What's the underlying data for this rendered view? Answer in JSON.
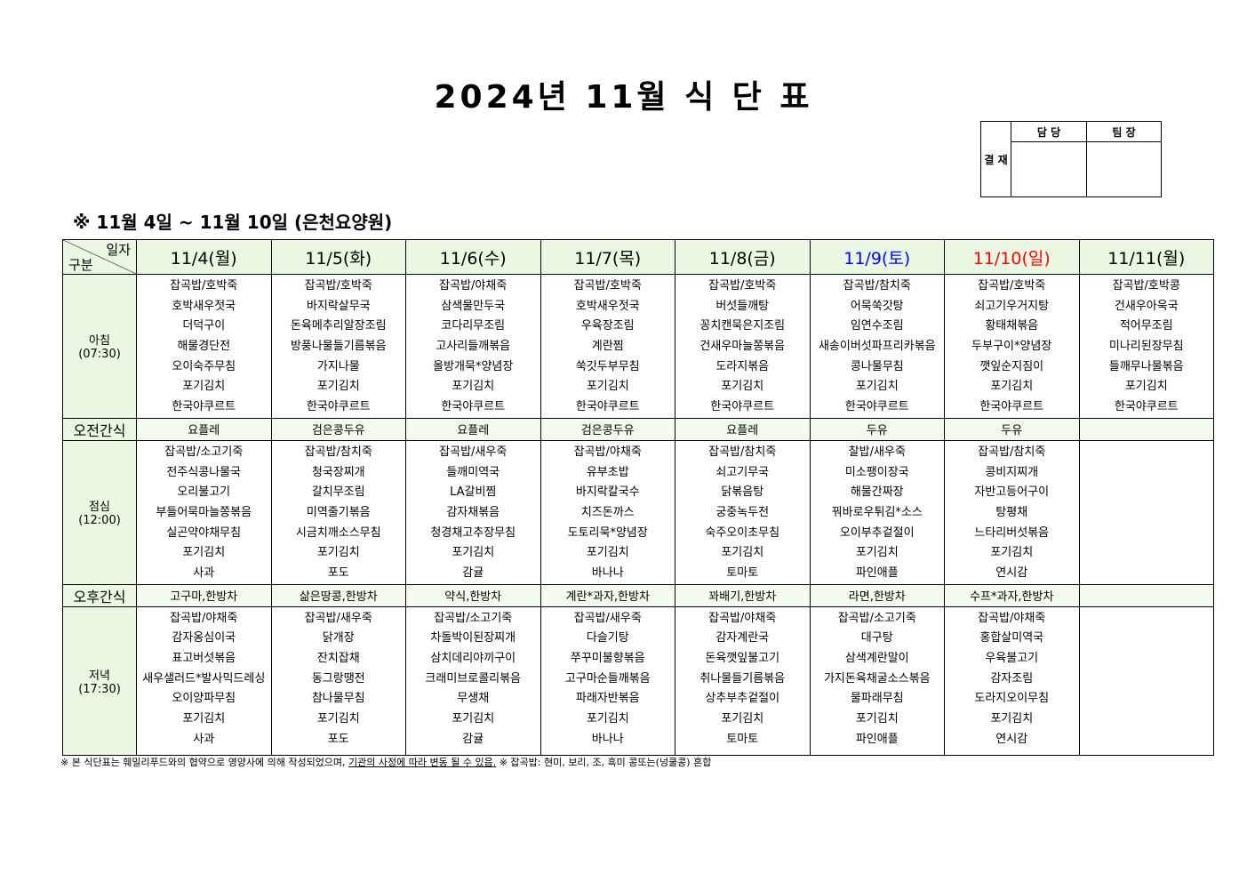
{
  "title": "2024년 11월 식 단 표",
  "approval": {
    "label": "결 재",
    "columns": [
      "담 당",
      "팀 장"
    ]
  },
  "subtitle": "※ 11월 4일 ~ 11월 10일 (은천요양원)",
  "corner": {
    "top": "일자",
    "bottom": "구분"
  },
  "colors": {
    "header_bg": "#eaf8e3",
    "saturday": "#0000ff",
    "sunday": "#ff0000"
  },
  "days": [
    {
      "label": "11/4(월)",
      "color": "#000000"
    },
    {
      "label": "11/5(화)",
      "color": "#000000"
    },
    {
      "label": "11/6(수)",
      "color": "#000000"
    },
    {
      "label": "11/7(목)",
      "color": "#000000"
    },
    {
      "label": "11/8(금)",
      "color": "#000000"
    },
    {
      "label": "11/9(토)",
      "color": "#0000ff"
    },
    {
      "label": "11/10(일)",
      "color": "#ff0000"
    },
    {
      "label": "11/11(월)",
      "color": "#000000"
    }
  ],
  "rows": [
    {
      "type": "meal",
      "name": "아침",
      "time": "(07:30)",
      "cells": [
        [
          "잡곡밥/호박죽",
          "호박새우젓국",
          "더덕구이",
          "해물경단전",
          "오이숙주무침",
          "포기김치",
          "한국야쿠르트"
        ],
        [
          "잡곡밥/호박죽",
          "바지락살무국",
          "돈육메추리알장조림",
          "방풍나물들기름볶음",
          "가지나물",
          "포기김치",
          "한국야쿠르트"
        ],
        [
          "잡곡밥/야채죽",
          "삼색물만두국",
          "코다리무조림",
          "고사리들깨볶음",
          "올방개묵*양념장",
          "포기김치",
          "한국야쿠르트"
        ],
        [
          "잡곡밥/호박죽",
          "호박새우젓국",
          "우육장조림",
          "계란찜",
          "쑥갓두부무침",
          "포기김치",
          "한국야쿠르트"
        ],
        [
          "잡곡밥/호박죽",
          "버섯들깨탕",
          "꽁치캔묵은지조림",
          "건새우마늘쫑볶음",
          "도라지볶음",
          "포기김치",
          "한국야쿠르트"
        ],
        [
          "잡곡밥/참치죽",
          "어묵쑥갓탕",
          "임연수조림",
          "새송이버섯파프리카볶음",
          "콩나물무침",
          "포기김치",
          "한국야쿠르트"
        ],
        [
          "잡곡밥/호박죽",
          "쇠고기우거지탕",
          "황태채볶음",
          "두부구이*양념장",
          "깻잎순지짐이",
          "포기김치",
          "한국야쿠르트"
        ],
        [
          "잡곡밥/호박콩",
          "건새우아욱국",
          "적어무조림",
          "미나리된장무침",
          "들깨무나물볶음",
          "포기김치",
          "한국야쿠르트"
        ]
      ]
    },
    {
      "type": "snack",
      "name": "오전간식",
      "cells": [
        "요플레",
        "검은콩두유",
        "요플레",
        "검은콩두유",
        "요플레",
        "두유",
        "두유",
        ""
      ]
    },
    {
      "type": "meal",
      "name": "점심",
      "time": "(12:00)",
      "cells": [
        [
          "잡곡밥/소고기죽",
          "전주식콩나물국",
          "오리불고기",
          "부들어묵마늘쫑볶음",
          "실곤약야채무침",
          "포기김치",
          "사과"
        ],
        [
          "잡곡밥/참치죽",
          "청국장찌개",
          "갈치무조림",
          "미역줄기볶음",
          "시금치깨소스무침",
          "포기김치",
          "포도"
        ],
        [
          "잡곡밥/새우죽",
          "들깨미역국",
          "LA갈비찜",
          "감자채볶음",
          "청경채고추장무침",
          "포기김치",
          "감귤"
        ],
        [
          "잡곡밥/야채죽",
          "유부초밥",
          "바지락칼국수",
          "치즈돈까스",
          "도토리묵*양념장",
          "포기김치",
          "바나나"
        ],
        [
          "잡곡밥/참치죽",
          "쇠고기무국",
          "닭볶음탕",
          "궁중녹두전",
          "숙주오이초무침",
          "포기김치",
          "토마토"
        ],
        [
          "찰밥/새우죽",
          "미소팽이장국",
          "해물간짜장",
          "꿔바로우튀김*소스",
          "오이부추겉절이",
          "포기김치",
          "파인애플"
        ],
        [
          "잡곡밥/참치죽",
          "콩비지찌개",
          "자반고등어구이",
          "탕평채",
          "느타리버섯볶음",
          "포기김치",
          "연시감"
        ],
        []
      ]
    },
    {
      "type": "snack",
      "name": "오후간식",
      "cells": [
        "고구마,한방차",
        "삶은땅콩,한방차",
        "약식,한방차",
        "계란*과자,한방차",
        "꽈배기,한방차",
        "라면,한방차",
        "수프*과자,한방차",
        ""
      ]
    },
    {
      "type": "meal",
      "name": "저녁",
      "time": "(17:30)",
      "cells": [
        [
          "잡곡밥/야채죽",
          "감자옹심이국",
          "표고버섯볶음",
          "새우샐러드*발사믹드레싱",
          "오이양파무침",
          "포기김치",
          "사과"
        ],
        [
          "잡곡밥/새우죽",
          "닭개장",
          "잔치잡채",
          "동그랑땡전",
          "참나물무침",
          "포기김치",
          "포도"
        ],
        [
          "잡곡밥/소고기죽",
          "차돌박이된장찌개",
          "삼치데리야끼구이",
          "크래미브로콜리볶음",
          "무생채",
          "포기김치",
          "감귤"
        ],
        [
          "잡곡밥/새우죽",
          "다슬기탕",
          "쭈꾸미불향볶음",
          "고구마순들깨볶음",
          "파래자반볶음",
          "포기김치",
          "바나나"
        ],
        [
          "잡곡밥/야채죽",
          "감자계란국",
          "돈육깻잎불고기",
          "취나물들기름볶음",
          "상추부추겉절이",
          "포기김치",
          "토마토"
        ],
        [
          "잡곡밥/소고기죽",
          "대구탕",
          "삼색계란말이",
          "가지돈육채굴소스볶음",
          "물파래무침",
          "포기김치",
          "파인애플"
        ],
        [
          "잡곡밥/야채죽",
          "홍합살미역국",
          "우육불고기",
          "감자조림",
          "도라지오이무침",
          "포기김치",
          "연시감"
        ],
        []
      ]
    }
  ],
  "footnote": {
    "part1": "※ 본 식단표는 훼밀리푸드와의 협약으로 영양사에 의해 작성되었으며, ",
    "underlined": "기관의 사정에 따라 변동 될 수 있음.",
    "part2": " ※ 잡곡밥: 현미, 보리, 조, 흑미 콩또는(넝쿨콩) 혼합"
  }
}
